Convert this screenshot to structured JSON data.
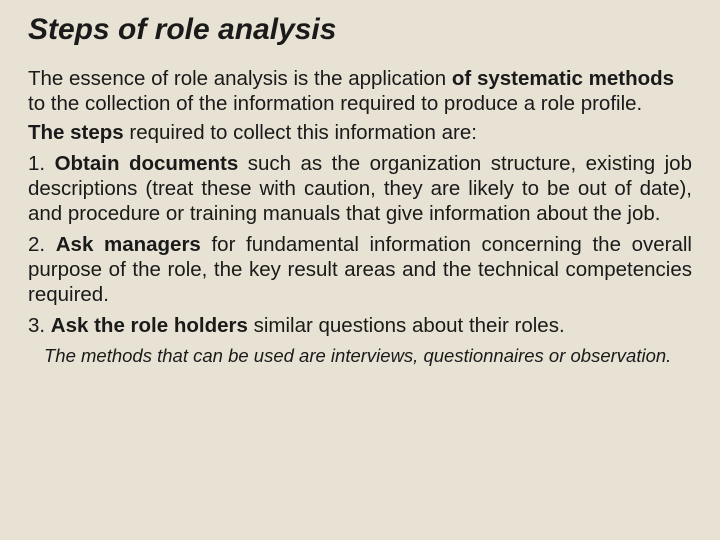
{
  "title": "Steps of role analysis",
  "intro_html": "The essence of role analysis is the application <b>of systematic methods</b> to the collection of the information required to produce a role profile.",
  "steps_line_html": "<b>The steps</b> required to collect this information are:",
  "steps": [
    "1. <b>Obtain documents</b> such as the organization structure, existing job descriptions (treat these with caution, they are likely to be out of date), and procedure or training manuals that give information about the job.",
    "2. <b>Ask managers</b> for fundamental information concerning the overall purpose of the role, the key result areas and the technical competencies required.",
    "3. <b>Ask the role holders</b> similar questions about their roles."
  ],
  "footnote": "The methods that can be used are interviews, questionnaires or observation.",
  "colors": {
    "background": "#e8e2d4",
    "text": "#1a1a1a"
  },
  "typography": {
    "title_fontsize": 30,
    "body_fontsize": 20.5,
    "footnote_fontsize": 18.5,
    "title_style": "bold italic",
    "body_family": "Arial"
  }
}
